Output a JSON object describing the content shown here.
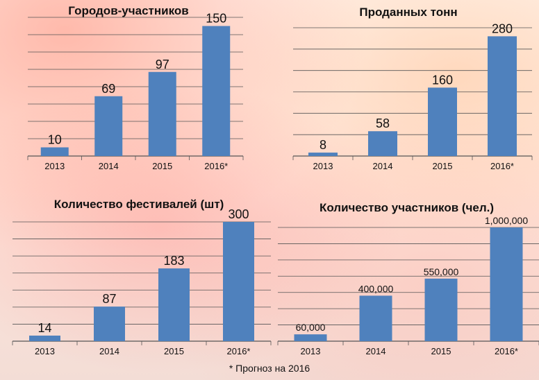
{
  "colors": {
    "bar": "#4f81bd",
    "grid": "#555555",
    "text": "#111111"
  },
  "footnote": "* Прогноз на 2016",
  "chart_data": [
    {
      "type": "bar",
      "title": "Городов-участников",
      "categories": [
        "2013",
        "2014",
        "2015",
        "2016*"
      ],
      "values": [
        10,
        69,
        97,
        150
      ],
      "value_labels": [
        "10",
        "69",
        "97",
        "150"
      ],
      "ylim": [
        0,
        160
      ],
      "grid": true
    },
    {
      "type": "bar",
      "title": "Проданных тонн",
      "categories": [
        "2013",
        "2014",
        "2015",
        "2016*"
      ],
      "values": [
        8,
        58,
        160,
        280
      ],
      "value_labels": [
        "8",
        "58",
        "160",
        "280"
      ],
      "ylim": [
        0,
        300
      ],
      "grid": true
    },
    {
      "type": "bar",
      "title": "Количество фестивалей (шт)",
      "categories": [
        "2013",
        "2014",
        "2015",
        "2016*"
      ],
      "values": [
        14,
        87,
        183,
        300
      ],
      "value_labels": [
        "14",
        "87",
        "183",
        "300"
      ],
      "ylim": [
        0,
        300
      ],
      "grid": true
    },
    {
      "type": "bar",
      "title": "Количество участников (чел.)",
      "categories": [
        "2013",
        "2014",
        "2015",
        "2016*"
      ],
      "values": [
        60000,
        400000,
        550000,
        1000000
      ],
      "value_labels": [
        "60,000",
        "400,000",
        "550,000",
        "1,000,000"
      ],
      "ylim": [
        0,
        1000000
      ],
      "grid": true
    }
  ]
}
